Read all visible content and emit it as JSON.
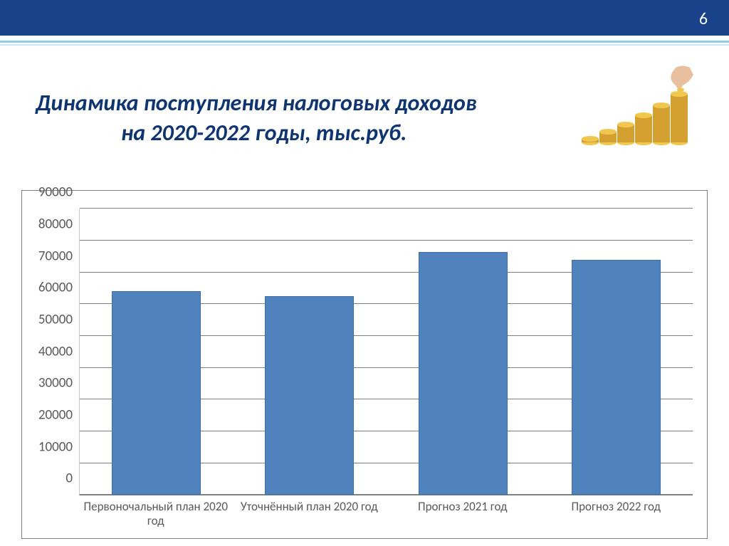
{
  "header": {
    "page_number": "6",
    "bar_color": "#1a428a",
    "underline_color": "#8ccde8"
  },
  "title": {
    "line1": "Динамика поступления налоговых доходов",
    "line2": "на 2020-2022 годы, тыс.руб.",
    "color": "#0e3571",
    "fontsize": 32
  },
  "chart": {
    "type": "bar",
    "categories": [
      "Первоночальный план 2020 год",
      "Уточнённый план 2020 год",
      "Прогноз 2021 год",
      "Прогноз 2022 год"
    ],
    "values": [
      64000,
      62500,
      76500,
      74000
    ],
    "bar_color": "#5082be",
    "bar_border_color": "#3a6fa8",
    "ylim": [
      0,
      90000
    ],
    "ytick_step": 10000,
    "yticks": [
      0,
      10000,
      20000,
      30000,
      40000,
      50000,
      60000,
      70000,
      80000,
      90000
    ],
    "gridline_color": "#808080",
    "axis_label_color": "#595959",
    "axis_fontsize": 19,
    "x_axis_fontsize": 17,
    "background_color": "#ffffff",
    "border_color": "#808080",
    "bar_width": 0.58
  }
}
